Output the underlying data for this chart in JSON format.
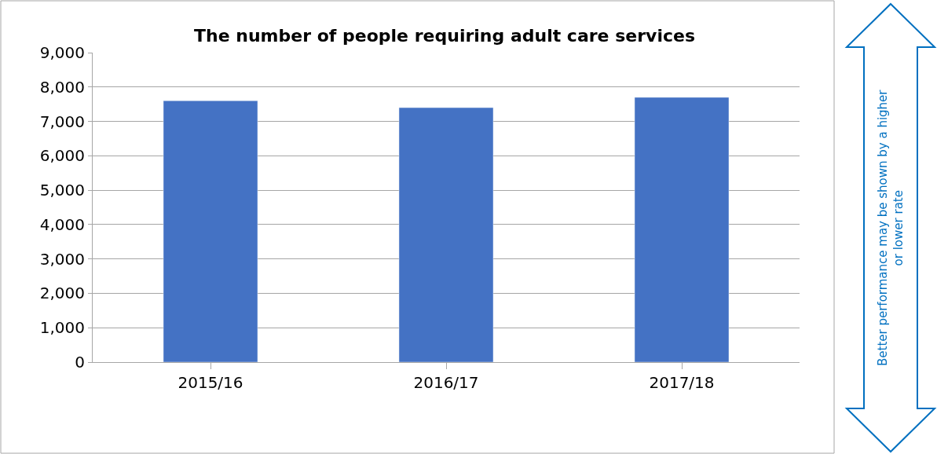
{
  "chart_data": {
    "type": "bar",
    "title": "The number of people requiring adult care services",
    "categories": [
      "2015/16",
      "2016/17",
      "2017/18"
    ],
    "values": [
      7600,
      7400,
      7700
    ],
    "color": "#4472c4",
    "ylim": [
      0,
      9000
    ],
    "yticks": [
      {
        "value": 0,
        "label": "0"
      },
      {
        "value": 1000,
        "label": "1,000"
      },
      {
        "value": 2000,
        "label": "2,000"
      },
      {
        "value": 3000,
        "label": "3,000"
      },
      {
        "value": 4000,
        "label": "4,000"
      },
      {
        "value": 5000,
        "label": "5,000"
      },
      {
        "value": 6000,
        "label": "6,000"
      },
      {
        "value": 7000,
        "label": "7,000"
      },
      {
        "value": 8000,
        "label": "8,000"
      },
      {
        "value": 9000,
        "label": "9,000"
      }
    ],
    "grid": "y",
    "legend": false,
    "annotations": [
      "Better performance may be shown by a higher or lower rate"
    ]
  }
}
